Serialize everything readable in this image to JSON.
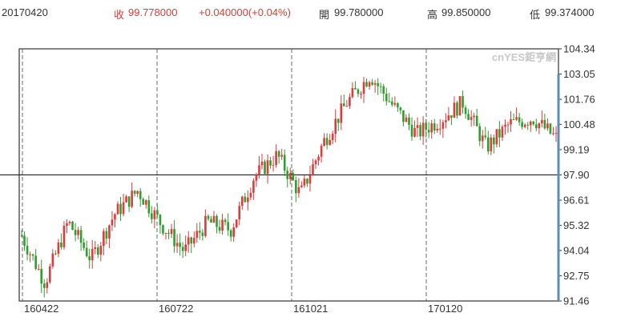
{
  "header": {
    "date": "20170420",
    "close_label": "收",
    "close_value": "99.778000",
    "change": "+0.040000(+0.04%)",
    "open_label": "開",
    "open_value": "99.780000",
    "high_label": "高",
    "high_value": "99.850000",
    "low_label": "低",
    "low_value": "99.374000"
  },
  "watermark": "cnYES鉅亨網",
  "colors": {
    "up": "#e03a3a",
    "down": "#2e9e2e",
    "axis": "#333333",
    "grid": "#666666",
    "reference": "#111111",
    "text": "#333333",
    "change_text": "#e03a3a",
    "current_bar": "#5b8fb3"
  },
  "chart_data": {
    "type": "candlestick",
    "y_ticks": [
      "104.34",
      "103.05",
      "101.76",
      "100.48",
      "99.19",
      "97.90",
      "96.61",
      "95.32",
      "94.04",
      "92.75",
      "91.46"
    ],
    "ylim": [
      91.46,
      104.34
    ],
    "x_ticks": [
      "160422",
      "160722",
      "161021",
      "170120"
    ],
    "reference_line": 97.9,
    "grid": "vertical-dashed",
    "series": [
      {
        "date": "160422",
        "value": 94.8
      },
      {
        "date": "160510",
        "value": 92.4
      },
      {
        "date": "160525",
        "value": 95.5
      },
      {
        "date": "160615",
        "value": 93.6
      },
      {
        "date": "160620",
        "value": 95.9
      },
      {
        "date": "160722",
        "value": 97.1
      },
      {
        "date": "160805",
        "value": 95.4
      },
      {
        "date": "160820",
        "value": 94.0
      },
      {
        "date": "160915",
        "value": 95.5
      },
      {
        "date": "160930",
        "value": 95.1
      },
      {
        "date": "161010",
        "value": 97.8
      },
      {
        "date": "161021",
        "value": 98.9
      },
      {
        "date": "161103",
        "value": 96.9
      },
      {
        "date": "161115",
        "value": 99.6
      },
      {
        "date": "161125",
        "value": 101.6
      },
      {
        "date": "161215",
        "value": 103.0
      },
      {
        "date": "170105",
        "value": 101.4
      },
      {
        "date": "170120",
        "value": 100.0
      },
      {
        "date": "170210",
        "value": 100.7
      },
      {
        "date": "170228",
        "value": 101.6
      },
      {
        "date": "170320",
        "value": 99.3
      },
      {
        "date": "170330",
        "value": 100.5
      },
      {
        "date": "170405",
        "value": 100.8
      },
      {
        "date": "170420",
        "value": 99.78
      }
    ]
  }
}
